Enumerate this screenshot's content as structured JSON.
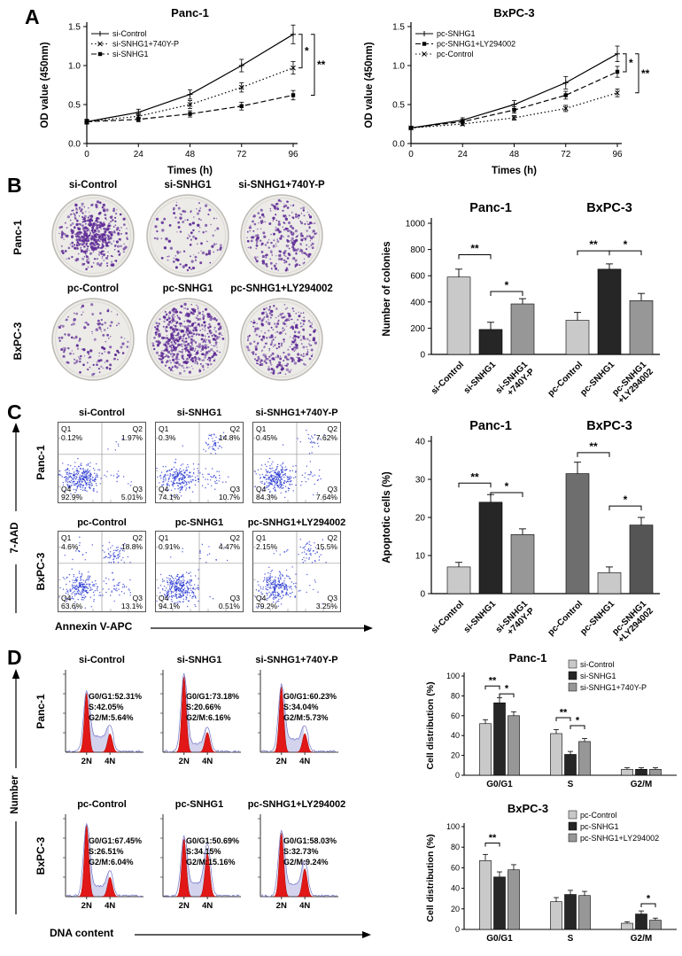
{
  "figure": {
    "panel_labels": {
      "a": "A",
      "b": "B",
      "c": "C",
      "d": "D"
    }
  },
  "palette": {
    "light": "#c9c9c9",
    "dark": "#262626",
    "mid": "#979797",
    "dark2": "#6e6e6e",
    "mid2": "#555555",
    "dot_blue": "#2434cf",
    "colony_purple": "#5e2b96",
    "peak_red": "#e21717",
    "trace_blue": "#7272c9"
  },
  "panel_b": {
    "row_labels": [
      "Panc-1",
      "BxPC-3"
    ],
    "dish_titles": [
      "si-Control",
      "si-SNHG1",
      "si-SNHG1+740Y-P",
      "pc-Control",
      "pc-SNHG1",
      "pc-SNHG1+LY294002"
    ],
    "dish_patterns": [
      {
        "pattern": "dense-center",
        "n": 520
      },
      {
        "pattern": "sparse",
        "n": 120
      },
      {
        "pattern": "medium",
        "n": 300
      },
      {
        "pattern": "sparse",
        "n": 140
      },
      {
        "pattern": "dense",
        "n": 560
      },
      {
        "pattern": "medium",
        "n": 320
      }
    ]
  },
  "panel_c": {
    "row_labels": [
      "Panc-1",
      "BxPC-3"
    ],
    "ylabel": "7-AAD",
    "xlabel": "Annexin V-APC",
    "plot_titles": [
      "si-Control",
      "si-SNHG1",
      "si-SNHG1+740Y-P",
      "pc-Control",
      "pc-SNHG1",
      "pc-SNHG1+LY294002"
    ]
  },
  "panel_d": {
    "row_labels": [
      "Panc-1",
      "BxPC-3"
    ],
    "ylabel": "Number",
    "xlabel": "DNA content",
    "plot_titles": [
      "si-Control",
      "si-SNHG1",
      "si-SNHG1+740Y-P",
      "pc-Control",
      "pc-SNHG1",
      "pc-SNHG1+LY294002"
    ],
    "n_ticks": [
      "2N",
      "4N"
    ]
  },
  "chart_data": [
    {
      "id": "cck8_panc1",
      "type": "line",
      "title": "Panc-1",
      "xlabel": "Times (h)",
      "ylabel": "OD value (450nm)",
      "x": [
        0,
        24,
        48,
        72,
        96
      ],
      "xticks": [
        "0",
        "24",
        "48",
        "72",
        "96"
      ],
      "ylim": [
        0,
        1.5
      ],
      "yticks": [
        "0.0",
        "0.5",
        "1.0",
        "1.5"
      ],
      "series": [
        {
          "name": "si-Control",
          "dash": "solid",
          "marker": "plus",
          "values": [
            0.28,
            0.4,
            0.63,
            1.0,
            1.4
          ],
          "errs": [
            0.03,
            0.04,
            0.06,
            0.08,
            0.12
          ]
        },
        {
          "name": "si-SNHG1+740Y-P",
          "dash": "dot",
          "marker": "x",
          "values": [
            0.28,
            0.35,
            0.5,
            0.72,
            0.97
          ],
          "errs": [
            0.03,
            0.03,
            0.05,
            0.06,
            0.08
          ]
        },
        {
          "name": "si-SNHG1",
          "dash": "dash",
          "marker": "square",
          "values": [
            0.28,
            0.31,
            0.38,
            0.48,
            0.62
          ],
          "errs": [
            0.02,
            0.03,
            0.04,
            0.05,
            0.06
          ]
        }
      ],
      "sig": [
        {
          "label": "*",
          "from": 0,
          "to": 1,
          "off": 10
        },
        {
          "label": "**",
          "from": 0,
          "to": 2,
          "off": 24
        }
      ]
    },
    {
      "id": "cck8_bxpc3",
      "type": "line",
      "title": "BxPC-3",
      "xlabel": "Times (h)",
      "ylabel": "OD value (450nm)",
      "x": [
        0,
        24,
        48,
        72,
        96
      ],
      "xticks": [
        "0",
        "24",
        "48",
        "72",
        "96"
      ],
      "ylim": [
        0,
        1.5
      ],
      "yticks": [
        "0.0",
        "0.5",
        "1.0",
        "1.5"
      ],
      "series": [
        {
          "name": "pc-SNHG1",
          "dash": "solid",
          "marker": "plus",
          "values": [
            0.2,
            0.3,
            0.5,
            0.78,
            1.15
          ],
          "errs": [
            0.02,
            0.03,
            0.05,
            0.08,
            0.1
          ]
        },
        {
          "name": "pc-SNHG1+LY294002",
          "dash": "dash",
          "marker": "square",
          "values": [
            0.2,
            0.28,
            0.43,
            0.62,
            0.92
          ],
          "errs": [
            0.02,
            0.03,
            0.04,
            0.05,
            0.07
          ]
        },
        {
          "name": "pc-Control",
          "dash": "dot",
          "marker": "x",
          "values": [
            0.2,
            0.25,
            0.33,
            0.45,
            0.65
          ],
          "errs": [
            0.02,
            0.02,
            0.03,
            0.04,
            0.05
          ]
        }
      ],
      "sig": [
        {
          "label": "*",
          "from": 0,
          "to": 1,
          "off": 10
        },
        {
          "label": "**",
          "from": 0,
          "to": 2,
          "off": 24
        }
      ]
    },
    {
      "id": "colonies",
      "type": "bar",
      "ylabel": "Number of colonies",
      "ylim": [
        0,
        1000
      ],
      "yticks": [
        0,
        200,
        400,
        600,
        800,
        1000
      ],
      "group_titles": [
        {
          "label": "Panc-1",
          "from": 0,
          "to": 2
        },
        {
          "label": "BxPC-3",
          "from": 3,
          "to": 5
        }
      ],
      "bars": [
        {
          "label": [
            "si-Control"
          ],
          "value": 590,
          "err": 60,
          "color": "light"
        },
        {
          "label": [
            "si-SNHG1"
          ],
          "value": 190,
          "err": 55,
          "color": "dark"
        },
        {
          "label": [
            "si-SNHG1",
            "+740Y-P"
          ],
          "value": 385,
          "err": 40,
          "color": "mid"
        },
        {
          "label": [
            "pc-Control"
          ],
          "value": 260,
          "err": 60,
          "color": "light"
        },
        {
          "label": [
            "pc-SNHG1"
          ],
          "value": 650,
          "err": 40,
          "color": "dark"
        },
        {
          "label": [
            "pc-SNHG1",
            "+LY294002"
          ],
          "value": 410,
          "err": 55,
          "color": "mid"
        }
      ],
      "sig": [
        {
          "from": 0,
          "to": 1,
          "y": 760,
          "label": "**"
        },
        {
          "from": 1,
          "to": 2,
          "y": 480,
          "label": "*"
        },
        {
          "from": 3,
          "to": 4,
          "y": 790,
          "label": "**"
        },
        {
          "from": 4,
          "to": 5,
          "y": 790,
          "label": "*"
        }
      ]
    },
    {
      "id": "apoptosis",
      "type": "bar",
      "ylabel": "Apoptotic cells (%)",
      "ylim": [
        0,
        40
      ],
      "yticks": [
        0,
        10,
        20,
        30,
        40
      ],
      "group_titles": [
        {
          "label": "Panc-1",
          "from": 0,
          "to": 2
        },
        {
          "label": "BxPC-3",
          "from": 3,
          "to": 5
        }
      ],
      "bars": [
        {
          "label": [
            "si-Control"
          ],
          "value": 7,
          "err": 1.2,
          "color": "light"
        },
        {
          "label": [
            "si-SNHG1"
          ],
          "value": 24,
          "err": 2,
          "color": "dark"
        },
        {
          "label": [
            "si-SNHG1",
            "+740Y-P"
          ],
          "value": 15.5,
          "err": 1.5,
          "color": "mid"
        },
        {
          "label": [
            "pc-Control"
          ],
          "value": 31.5,
          "err": 3,
          "color": "dark2"
        },
        {
          "label": [
            "pc-SNHG1"
          ],
          "value": 5.5,
          "err": 1.5,
          "color": "light"
        },
        {
          "label": [
            "pc-SNHG1",
            "+LY294002"
          ],
          "value": 18,
          "err": 2,
          "color": "mid2"
        }
      ],
      "sig": [
        {
          "from": 0,
          "to": 1,
          "y": 29,
          "label": "**"
        },
        {
          "from": 1,
          "to": 2,
          "y": 26.5,
          "label": "*"
        },
        {
          "from": 3,
          "to": 4,
          "y": 37,
          "label": "**"
        },
        {
          "from": 4,
          "to": 5,
          "y": 23,
          "label": "*"
        }
      ]
    },
    {
      "id": "flow_quadrants",
      "type": "scatter",
      "xlabel": "Annexin V-APC",
      "ylabel": "7-AAD",
      "quadrant_names": [
        "Q1",
        "Q2",
        "Q3",
        "Q4"
      ],
      "plots": [
        {
          "cell_line": "Panc-1",
          "title": "si-Control",
          "q1": "0.12%",
          "q2": "1.97%",
          "q3": "5.01%",
          "q4": "92.9%"
        },
        {
          "cell_line": "Panc-1",
          "title": "si-SNHG1",
          "q1": "0.3%",
          "q2": "14.8%",
          "q3": "10.7%",
          "q4": "74.1%"
        },
        {
          "cell_line": "Panc-1",
          "title": "si-SNHG1+740Y-P",
          "q1": "0.45%",
          "q2": "7.62%",
          "q3": "7.64%",
          "q4": "84.3%"
        },
        {
          "cell_line": "BxPC-3",
          "title": "pc-Control",
          "q1": "4.6%",
          "q2": "18.8%",
          "q3": "13.1%",
          "q4": "63.6%"
        },
        {
          "cell_line": "BxPC-3",
          "title": "pc-SNHG1",
          "q1": "0.91%",
          "q2": "4.47%",
          "q3": "0.51%",
          "q4": "94.1%"
        },
        {
          "cell_line": "BxPC-3",
          "title": "pc-SNHG1+LY294002",
          "q1": "2.15%",
          "q2": "15.5%",
          "q3": "3.25%",
          "q4": "79.2%"
        }
      ]
    },
    {
      "id": "cell_cycle",
      "type": "area",
      "xlabel": "DNA content",
      "ylabel": "Number",
      "plots": [
        {
          "cell_line": "Panc-1",
          "title": "si-Control",
          "g0g1": "G0/G1:52.31%",
          "s": "S:42.05%",
          "g2m": "G2/M:5.64%"
        },
        {
          "cell_line": "Panc-1",
          "title": "si-SNHG1",
          "g0g1": "G0/G1:73.18%",
          "s": "S:20.66%",
          "g2m": "G2/M:6.16%"
        },
        {
          "cell_line": "Panc-1",
          "title": "si-SNHG1+740Y-P",
          "g0g1": "G0/G1:60.23%",
          "s": "S:34.04%",
          "g2m": "G2/M:5.73%"
        },
        {
          "cell_line": "BxPC-3",
          "title": "pc-Control",
          "g0g1": "G0/G1:67.45%",
          "s": "S:26.51%",
          "g2m": "G2/M:6.04%"
        },
        {
          "cell_line": "BxPC-3",
          "title": "pc-SNHG1",
          "g0g1": "G0/G1:50.69%",
          "s": "S:34.15%",
          "g2m": "G2/M:15.16%"
        },
        {
          "cell_line": "BxPC-3",
          "title": "pc-SNHG1+LY294002",
          "g0g1": "G0/G1:58.03%",
          "s": "S:32.73%",
          "g2m": "G2/M:9.24%"
        }
      ]
    },
    {
      "id": "cycle_dist_panc1",
      "type": "grouped-bar",
      "title": "Panc-1",
      "ylabel": "Cell distribution (%)",
      "ylim": [
        0,
        100
      ],
      "yticks": [
        0,
        20,
        40,
        60,
        80,
        100
      ],
      "categories": [
        "G0/G1",
        "S",
        "G2/M"
      ],
      "series": [
        {
          "name": "si-Control",
          "color": "light",
          "values": [
            52,
            42,
            6
          ],
          "errs": [
            4,
            4,
            1.5
          ]
        },
        {
          "name": "si-SNHG1",
          "color": "dark",
          "values": [
            73,
            21,
            6
          ],
          "errs": [
            5,
            3,
            1.5
          ]
        },
        {
          "name": "si-SNHG1+740Y-P",
          "color": "mid",
          "values": [
            60,
            34,
            6
          ],
          "errs": [
            4,
            3,
            1.5
          ]
        }
      ],
      "sig": [
        {
          "cat": 0,
          "from": 0,
          "to": 1,
          "y": 90,
          "label": "**"
        },
        {
          "cat": 0,
          "from": 1,
          "to": 2,
          "y": 82,
          "label": "*"
        },
        {
          "cat": 1,
          "from": 0,
          "to": 1,
          "y": 58,
          "label": "**"
        },
        {
          "cat": 1,
          "from": 1,
          "to": 2,
          "y": 50,
          "label": "*"
        }
      ]
    },
    {
      "id": "cycle_dist_bxpc3",
      "type": "grouped-bar",
      "title": "BxPC-3",
      "ylabel": "Cell distribution (%)",
      "ylim": [
        0,
        100
      ],
      "yticks": [
        0,
        20,
        40,
        60,
        80,
        100
      ],
      "categories": [
        "G0/G1",
        "S",
        "G2/M"
      ],
      "series": [
        {
          "name": "pc-Control",
          "color": "light",
          "values": [
            67,
            27,
            6
          ],
          "errs": [
            6,
            4,
            1.5
          ]
        },
        {
          "name": "pc-SNHG1",
          "color": "dark",
          "values": [
            51,
            34,
            15
          ],
          "errs": [
            5,
            4,
            3
          ]
        },
        {
          "name": "pc-SNHG1+LY294002",
          "color": "mid",
          "values": [
            58,
            33,
            9
          ],
          "errs": [
            5,
            4,
            2
          ]
        }
      ],
      "sig": [
        {
          "cat": 0,
          "from": 0,
          "to": 1,
          "y": 84,
          "label": "**"
        },
        {
          "cat": 2,
          "from": 1,
          "to": 2,
          "y": 25,
          "label": "*"
        }
      ]
    }
  ]
}
